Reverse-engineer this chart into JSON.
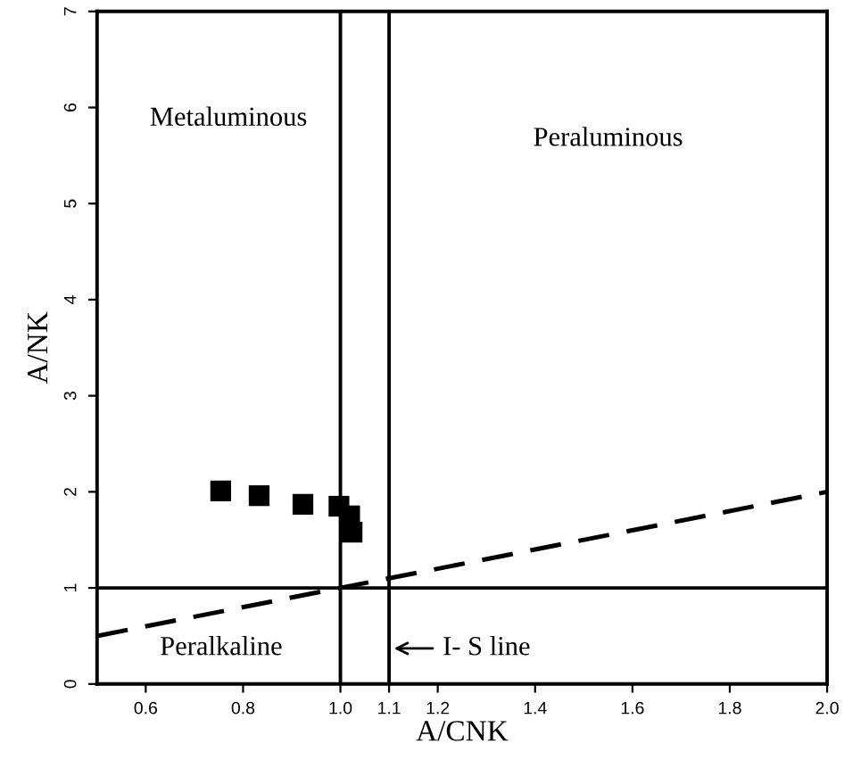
{
  "chart_data": {
    "type": "scatter",
    "xlabel": "A/CNK",
    "ylabel": "A/NK",
    "xlim": [
      0.5,
      2.0
    ],
    "ylim": [
      0,
      7
    ],
    "xticks": [
      0.6,
      0.8,
      {
        "value": 1.0,
        "label": "1.0"
      },
      1.1,
      1.2,
      1.4,
      1.6,
      1.8,
      {
        "value": 2.0,
        "label": "2.0"
      }
    ],
    "yticks": [
      0,
      1,
      2,
      3,
      4,
      5,
      6,
      7
    ],
    "grid": false,
    "marker": "square",
    "series": [
      {
        "color": "#000000",
        "x": [
          0.754,
          0.833,
          0.923,
          0.997,
          1.019,
          1.024
        ],
        "values": [
          2.01,
          1.96,
          1.87,
          1.85,
          1.75,
          1.58
        ]
      },
      {
        "type": "line",
        "color": "#000000",
        "line_style": "dashed",
        "marker": "none",
        "x": [
          0.5,
          2.0
        ],
        "values": [
          0.5,
          2.0
        ]
      }
    ],
    "ref_lines": [
      {
        "axis": "x",
        "value": 1.0,
        "color": "#000000"
      },
      {
        "axis": "x",
        "value": 1.1,
        "color": "#000000"
      },
      {
        "axis": "y",
        "value": 1,
        "color": "#000000"
      }
    ],
    "annotations": [
      "Metaluminous",
      "Peraluminous",
      "Peralkaline",
      {
        "text": "I- S line",
        "x": 1.1,
        "y": 0.37
      }
    ]
  }
}
